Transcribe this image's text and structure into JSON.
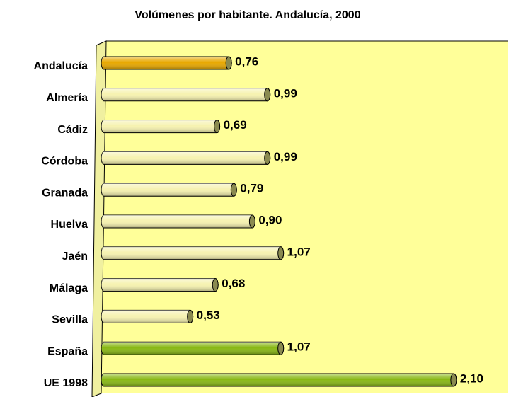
{
  "chart_data": {
    "type": "bar",
    "orientation": "horizontal",
    "title": "Volúmenes por habitante. Andalucía, 2000",
    "categories": [
      "Andalucía",
      "Almería",
      "Cádiz",
      "Córdoba",
      "Granada",
      "Huelva",
      "Jaén",
      "Málaga",
      "Sevilla",
      "España",
      "UE 1998"
    ],
    "values": [
      0.76,
      0.99,
      0.69,
      0.99,
      0.79,
      0.9,
      1.07,
      0.68,
      0.53,
      1.07,
      2.1
    ],
    "value_labels": [
      "0,76",
      "0,99",
      "0,69",
      "0,99",
      "0,79",
      "0,90",
      "1,07",
      "0,68",
      "0,53",
      "1,07",
      "2,10"
    ],
    "colors": [
      "#e8a800",
      "#f6f2b0",
      "#f6f2b0",
      "#f6f2b0",
      "#f6f2b0",
      "#f6f2b0",
      "#f6f2b0",
      "#f6f2b0",
      "#f6f2b0",
      "#88b814",
      "#88b814"
    ],
    "xlim": [
      0,
      2.4
    ]
  }
}
